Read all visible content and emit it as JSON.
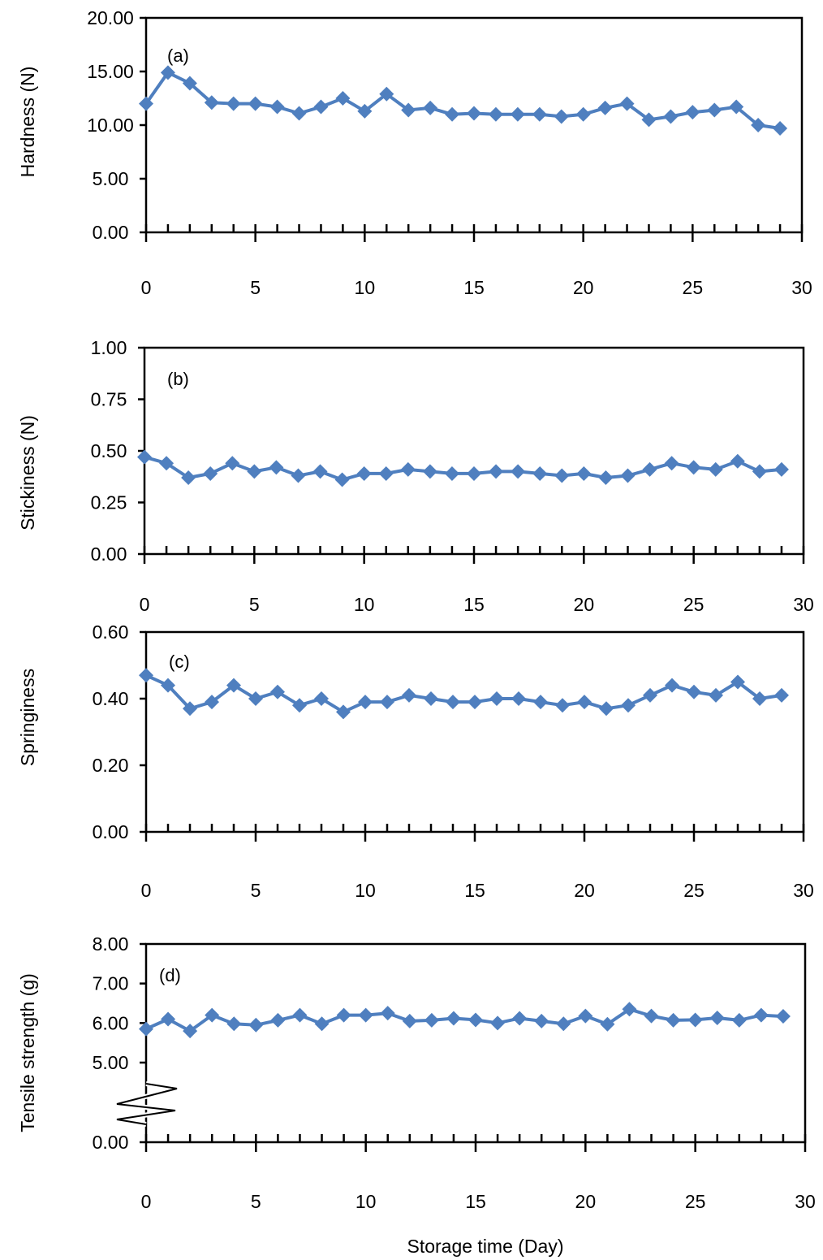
{
  "figure": {
    "xlabel": "Storage time (Day)",
    "series_color": "#4F7FBF"
  },
  "chart_data": [
    {
      "type": "line",
      "panel_label": "(a)",
      "ylabel": "Hardness (N)",
      "xlim": [
        0,
        30
      ],
      "ylim": [
        0,
        20
      ],
      "x_ticks": [
        "0",
        "5",
        "10",
        "15",
        "20",
        "25",
        "30"
      ],
      "y_ticks": [
        "0.00",
        "5.00",
        "10.00",
        "15.00",
        "20.00"
      ],
      "y_tick_values": [
        0,
        5,
        10,
        15,
        20
      ],
      "grid": false,
      "x": [
        0,
        1,
        2,
        3,
        4,
        5,
        6,
        7,
        8,
        9,
        10,
        11,
        12,
        13,
        14,
        15,
        16,
        17,
        18,
        19,
        20,
        21,
        22,
        23,
        24,
        25,
        26,
        27,
        28,
        29
      ],
      "series": [
        {
          "values": [
            12.0,
            14.9,
            13.9,
            12.1,
            12.0,
            12.0,
            11.7,
            11.1,
            11.7,
            12.5,
            11.3,
            12.9,
            11.4,
            11.6,
            11.0,
            11.1,
            11.0,
            11.0,
            11.0,
            10.8,
            11.0,
            11.6,
            12.0,
            10.5,
            10.8,
            11.2,
            11.4,
            11.7,
            10.0,
            9.7
          ]
        }
      ]
    },
    {
      "type": "line",
      "panel_label": "(b)",
      "ylabel": "Stickiness (N)",
      "xlim": [
        0,
        30
      ],
      "ylim": [
        0,
        1
      ],
      "x_ticks": [
        "0",
        "5",
        "10",
        "15",
        "20",
        "25",
        "30"
      ],
      "y_ticks": [
        "0.00",
        "0.25",
        "0.50",
        "0.75",
        "1.00"
      ],
      "y_tick_values": [
        0,
        0.25,
        0.5,
        0.75,
        1.0
      ],
      "grid": false,
      "x": [
        0,
        1,
        2,
        3,
        4,
        5,
        6,
        7,
        8,
        9,
        10,
        11,
        12,
        13,
        14,
        15,
        16,
        17,
        18,
        19,
        20,
        21,
        22,
        23,
        24,
        25,
        26,
        27,
        28,
        29
      ],
      "series": [
        {
          "values": [
            0.47,
            0.44,
            0.37,
            0.39,
            0.44,
            0.4,
            0.42,
            0.38,
            0.4,
            0.36,
            0.39,
            0.39,
            0.41,
            0.4,
            0.39,
            0.39,
            0.4,
            0.4,
            0.39,
            0.38,
            0.39,
            0.37,
            0.38,
            0.41,
            0.44,
            0.42,
            0.41,
            0.45,
            0.4,
            0.41
          ]
        }
      ]
    },
    {
      "type": "line",
      "panel_label": "(c)",
      "ylabel": "Springiness",
      "xlim": [
        0,
        30
      ],
      "ylim": [
        0,
        0.6
      ],
      "x_ticks": [
        "0",
        "5",
        "10",
        "15",
        "20",
        "25",
        "30"
      ],
      "y_ticks": [
        "0.00",
        "0.20",
        "0.40",
        "0.60"
      ],
      "y_tick_values": [
        0,
        0.2,
        0.4,
        0.6
      ],
      "grid": false,
      "x": [
        0,
        1,
        2,
        3,
        4,
        5,
        6,
        7,
        8,
        9,
        10,
        11,
        12,
        13,
        14,
        15,
        16,
        17,
        18,
        19,
        20,
        21,
        22,
        23,
        24,
        25,
        26,
        27,
        28,
        29
      ],
      "series": [
        {
          "values": [
            0.47,
            0.44,
            0.37,
            0.39,
            0.44,
            0.4,
            0.42,
            0.38,
            0.4,
            0.36,
            0.39,
            0.39,
            0.41,
            0.4,
            0.39,
            0.39,
            0.4,
            0.4,
            0.39,
            0.38,
            0.39,
            0.37,
            0.38,
            0.41,
            0.44,
            0.42,
            0.41,
            0.45,
            0.4,
            0.41
          ]
        }
      ]
    },
    {
      "type": "line",
      "panel_label": "(d)",
      "ylabel": "Tensile strength (g)",
      "xlim": [
        0,
        30
      ],
      "ylim": [
        0,
        8
      ],
      "axis_break": [
        0,
        5
      ],
      "x_ticks": [
        "0",
        "5",
        "10",
        "15",
        "20",
        "25",
        "30"
      ],
      "y_ticks": [
        "0.00",
        "5.00",
        "6.00",
        "7.00",
        "8.00"
      ],
      "y_tick_values": [
        0,
        5,
        6,
        7,
        8
      ],
      "grid": false,
      "x": [
        0,
        1,
        2,
        3,
        4,
        5,
        6,
        7,
        8,
        9,
        10,
        11,
        12,
        13,
        14,
        15,
        16,
        17,
        18,
        19,
        20,
        21,
        22,
        23,
        24,
        25,
        26,
        27,
        28,
        29
      ],
      "series": [
        {
          "values": [
            5.85,
            6.1,
            5.8,
            6.2,
            5.98,
            5.95,
            6.07,
            6.2,
            5.98,
            6.2,
            6.2,
            6.25,
            6.05,
            6.07,
            6.12,
            6.08,
            6.0,
            6.12,
            6.05,
            5.98,
            6.18,
            5.97,
            6.35,
            6.18,
            6.07,
            6.08,
            6.13,
            6.07,
            6.2,
            6.17
          ]
        }
      ]
    }
  ]
}
